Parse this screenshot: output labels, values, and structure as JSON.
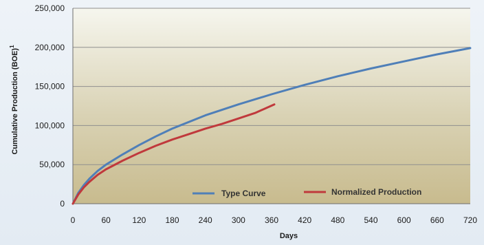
{
  "chart_data": {
    "type": "line",
    "xlabel": "Days",
    "ylabel": "Cumulative Production (BOE)",
    "ylabel_superscript": "1",
    "xlim": [
      0,
      720
    ],
    "ylim": [
      0,
      250000
    ],
    "xticks": [
      "0",
      "60",
      "120",
      "180",
      "240",
      "300",
      "360",
      "420",
      "480",
      "540",
      "600",
      "660",
      "720"
    ],
    "yticks": [
      "0",
      "50,000",
      "100,000",
      "150,000",
      "200,000",
      "250,000"
    ],
    "grid": "horizontal",
    "legend": "bottom-right",
    "series": [
      {
        "name": "Type Curve",
        "color": "#4f7fb8",
        "x": [
          0,
          10,
          20,
          30,
          45,
          60,
          90,
          120,
          150,
          180,
          240,
          300,
          360,
          420,
          480,
          540,
          600,
          660,
          720
        ],
        "y": [
          0,
          14000,
          24000,
          32000,
          42000,
          50000,
          63000,
          75000,
          86000,
          96000,
          113000,
          127000,
          140000,
          152000,
          163000,
          173000,
          182000,
          191000,
          199000
        ]
      },
      {
        "name": "Normalized Production",
        "color": "#c0393c",
        "x": [
          0,
          10,
          20,
          30,
          45,
          60,
          90,
          120,
          150,
          180,
          210,
          240,
          270,
          300,
          330,
          365
        ],
        "y": [
          0,
          12000,
          21000,
          28000,
          37000,
          44000,
          55000,
          65000,
          74000,
          82000,
          89000,
          96000,
          102000,
          109000,
          116000,
          127000
        ]
      }
    ]
  }
}
